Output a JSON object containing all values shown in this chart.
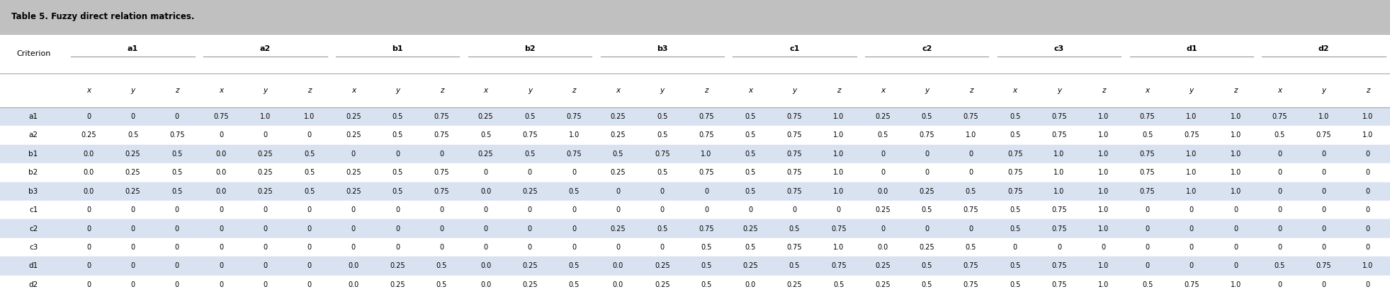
{
  "title": "Table 5. Fuzzy direct relation matrices.",
  "row_labels": [
    "a1",
    "a2",
    "b1",
    "b2",
    "b3",
    "c1",
    "c2",
    "c3",
    "d1",
    "d2"
  ],
  "col_groups": [
    "a1",
    "a2",
    "b1",
    "b2",
    "b3",
    "c1",
    "c2",
    "c3",
    "d1",
    "d2"
  ],
  "sub_cols": [
    "x",
    "y",
    "z"
  ],
  "table_data": [
    [
      "0",
      "0",
      "0",
      "0.75",
      "1.0",
      "1.0",
      "0.25",
      "0.5",
      "0.75",
      "0.25",
      "0.5",
      "0.75",
      "0.25",
      "0.5",
      "0.75",
      "0.5",
      "0.75",
      "1.0",
      "0.25",
      "0.5",
      "0.75",
      "0.5",
      "0.75",
      "1.0",
      "0.75",
      "1.0",
      "1.0",
      "0.75",
      "1.0",
      "1.0"
    ],
    [
      "0.25",
      "0.5",
      "0.75",
      "0",
      "0",
      "0",
      "0.25",
      "0.5",
      "0.75",
      "0.5",
      "0.75",
      "1.0",
      "0.25",
      "0.5",
      "0.75",
      "0.5",
      "0.75",
      "1.0",
      "0.5",
      "0.75",
      "1.0",
      "0.5",
      "0.75",
      "1.0",
      "0.5",
      "0.75",
      "1.0",
      "0.5",
      "0.75",
      "1.0"
    ],
    [
      "0.0",
      "0.25",
      "0.5",
      "0.0",
      "0.25",
      "0.5",
      "0",
      "0",
      "0",
      "0.25",
      "0.5",
      "0.75",
      "0.5",
      "0.75",
      "1.0",
      "0.5",
      "0.75",
      "1.0",
      "0",
      "0",
      "0",
      "0.75",
      "1.0",
      "1.0",
      "0.75",
      "1.0",
      "1.0",
      "0",
      "0",
      "0"
    ],
    [
      "0.0",
      "0.25",
      "0.5",
      "0.0",
      "0.25",
      "0.5",
      "0.25",
      "0.5",
      "0.75",
      "0",
      "0",
      "0",
      "0.25",
      "0.5",
      "0.75",
      "0.5",
      "0.75",
      "1.0",
      "0",
      "0",
      "0",
      "0.75",
      "1.0",
      "1.0",
      "0.75",
      "1.0",
      "1.0",
      "0",
      "0",
      "0"
    ],
    [
      "0.0",
      "0.25",
      "0.5",
      "0.0",
      "0.25",
      "0.5",
      "0.25",
      "0.5",
      "0.75",
      "0.0",
      "0.25",
      "0.5",
      "0",
      "0",
      "0",
      "0.5",
      "0.75",
      "1.0",
      "0.0",
      "0.25",
      "0.5",
      "0.75",
      "1.0",
      "1.0",
      "0.75",
      "1.0",
      "1.0",
      "0",
      "0",
      "0"
    ],
    [
      "0",
      "0",
      "0",
      "0",
      "0",
      "0",
      "0",
      "0",
      "0",
      "0",
      "0",
      "0",
      "0",
      "0",
      "0",
      "0",
      "0",
      "0",
      "0.25",
      "0.5",
      "0.75",
      "0.5",
      "0.75",
      "1.0",
      "0",
      "0",
      "0",
      "0",
      "0",
      "0"
    ],
    [
      "0",
      "0",
      "0",
      "0",
      "0",
      "0",
      "0",
      "0",
      "0",
      "0",
      "0",
      "0",
      "0.25",
      "0.5",
      "0.75",
      "0.25",
      "0.5",
      "0.75",
      "0",
      "0",
      "0",
      "0.5",
      "0.75",
      "1.0",
      "0",
      "0",
      "0",
      "0",
      "0",
      "0"
    ],
    [
      "0",
      "0",
      "0",
      "0",
      "0",
      "0",
      "0",
      "0",
      "0",
      "0",
      "0",
      "0",
      "0",
      "0",
      "0.5",
      "0.5",
      "0.75",
      "1.0",
      "0.0",
      "0.25",
      "0.5",
      "0",
      "0",
      "0",
      "0",
      "0",
      "0",
      "0",
      "0",
      "0"
    ],
    [
      "0",
      "0",
      "0",
      "0",
      "0",
      "0",
      "0.0",
      "0.25",
      "0.5",
      "0.0",
      "0.25",
      "0.5",
      "0.0",
      "0.25",
      "0.5",
      "0.25",
      "0.5",
      "0.75",
      "0.25",
      "0.5",
      "0.75",
      "0.5",
      "0.75",
      "1.0",
      "0",
      "0",
      "0",
      "0.5",
      "0.75",
      "1.0"
    ],
    [
      "0",
      "0",
      "0",
      "0",
      "0",
      "0",
      "0.0",
      "0.25",
      "0.5",
      "0.0",
      "0.25",
      "0.5",
      "0.0",
      "0.25",
      "0.5",
      "0.0",
      "0.25",
      "0.5",
      "0.25",
      "0.5",
      "0.75",
      "0.5",
      "0.75",
      "1.0",
      "0.5",
      "0.75",
      "1.0",
      "0",
      "0",
      "0"
    ]
  ],
  "even_row_color": "#d9e2f0",
  "odd_row_color": "#ffffff",
  "title_bar_color": "#c0c0c0",
  "header_bg_color": "#ffffff",
  "border_color": "#a0a0a0",
  "text_color": "#000000",
  "title_fontsize": 8.5,
  "group_fontsize": 8.0,
  "sub_fontsize": 7.5,
  "data_fontsize": 7.0,
  "row_label_fontsize": 7.5
}
